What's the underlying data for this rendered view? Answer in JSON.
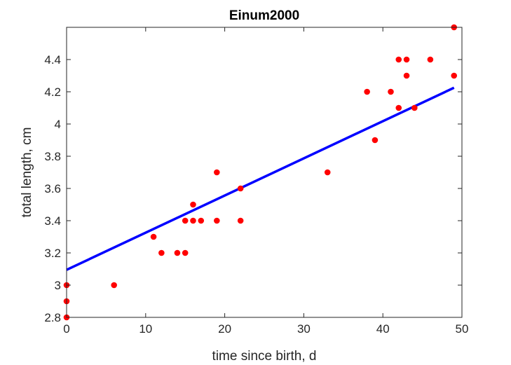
{
  "chart_data": {
    "type": "scatter",
    "title": "Einum2000",
    "xlabel": "time since birth, d",
    "ylabel": "total length, cm",
    "xlim": [
      0,
      50
    ],
    "ylim": [
      2.8,
      4.6
    ],
    "xticks": [
      0,
      10,
      20,
      30,
      40,
      50
    ],
    "yticks": [
      2.8,
      3.0,
      3.2,
      3.4,
      3.6,
      3.8,
      4.0,
      4.2,
      4.4
    ],
    "xtick_labels": [
      "0",
      "10",
      "20",
      "30",
      "40",
      "50"
    ],
    "ytick_labels": [
      "2.8",
      "3",
      "3.2",
      "3.4",
      "3.6",
      "3.8",
      "4",
      "4.2",
      "4.4"
    ],
    "grid": false,
    "series": [
      {
        "type": "scatter",
        "color": "#ff0000",
        "x": [
          0,
          0,
          0,
          6,
          11,
          12,
          14,
          15,
          15,
          16,
          16,
          17,
          19,
          19,
          22,
          22,
          33,
          38,
          39,
          41,
          42,
          42,
          43,
          43,
          44,
          46,
          49,
          49
        ],
        "y": [
          2.8,
          2.9,
          3.0,
          3.0,
          3.3,
          3.2,
          3.2,
          3.2,
          3.4,
          3.4,
          3.5,
          3.4,
          3.7,
          3.4,
          3.6,
          3.4,
          3.7,
          4.2,
          3.9,
          4.2,
          4.4,
          4.1,
          4.4,
          4.3,
          4.1,
          4.4,
          4.6,
          4.3
        ]
      },
      {
        "type": "line",
        "color": "#0000ff",
        "x": [
          0,
          49
        ],
        "y": [
          3.095,
          4.225
        ]
      }
    ]
  }
}
